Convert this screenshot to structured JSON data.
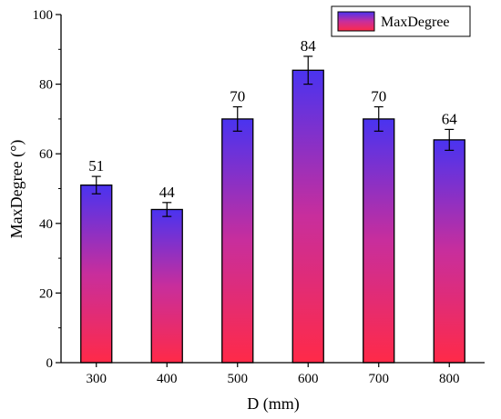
{
  "chart_data": {
    "type": "bar",
    "xlabel": "D (mm)",
    "ylabel": "MaxDegree (°)",
    "categories": [
      "300",
      "400",
      "500",
      "600",
      "700",
      "800"
    ],
    "series": [
      {
        "name": "MaxDegree",
        "values": [
          51,
          44,
          70,
          84,
          70,
          64
        ],
        "error": [
          2.5,
          2.0,
          3.5,
          4.0,
          3.5,
          3.0
        ],
        "data_labels": [
          "51",
          "44",
          "70",
          "84",
          "70",
          "64"
        ]
      }
    ],
    "ylim": [
      0,
      100
    ],
    "yticks": [
      "0",
      "20",
      "40",
      "60",
      "80",
      "100"
    ],
    "grid": false,
    "legend_position": "top-right",
    "colors": {
      "bar_top": "#4a33f0",
      "bar_bottom": "#ff2a48",
      "bar_mid": "#c82e9c",
      "outline": "#000000"
    }
  }
}
